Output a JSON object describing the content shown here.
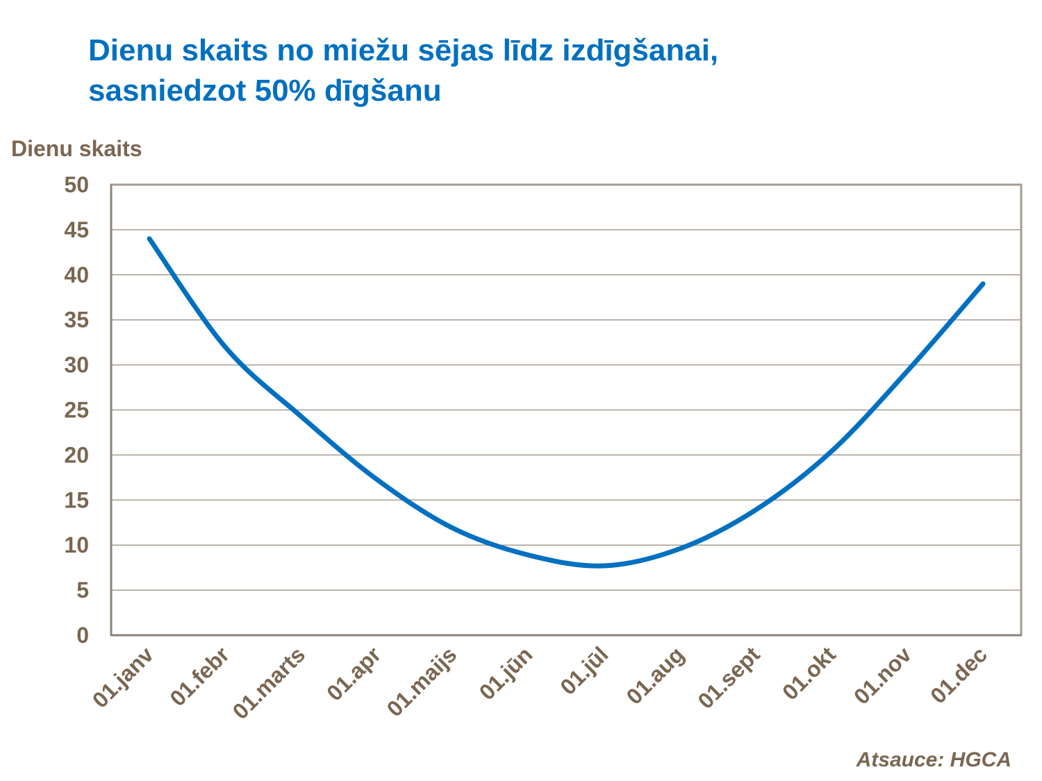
{
  "chart_data": {
    "type": "line",
    "title": "Dienu skaits no miežu sējas līdz izdīgšanai, sasniedzot 50% dīgšanu",
    "title_lines": [
      "Dienu skaits no miežu sējas līdz izdīgšanai,",
      "sasniedzot 50% dīgšanu"
    ],
    "ylabel": "Dienu skaits",
    "xlabel": "",
    "ylim": [
      0,
      50
    ],
    "yticks": [
      0,
      5,
      10,
      15,
      20,
      25,
      30,
      35,
      40,
      45,
      50
    ],
    "categories": [
      "01.janv",
      "01.febr",
      "01.marts",
      "01.apr",
      "01.maijs",
      "01.jūn",
      "01.jūl",
      "01.aug",
      "01.sept",
      "01.okt",
      "01.nov",
      "01.dec"
    ],
    "values": [
      44,
      32,
      24.3,
      17.3,
      11.9,
      8.9,
      7.7,
      9.6,
      13.9,
      20.4,
      29.3,
      39
    ],
    "grid": true,
    "legend": "none",
    "line_color": "#0070C0",
    "source": "Atsauce: HGCA"
  }
}
